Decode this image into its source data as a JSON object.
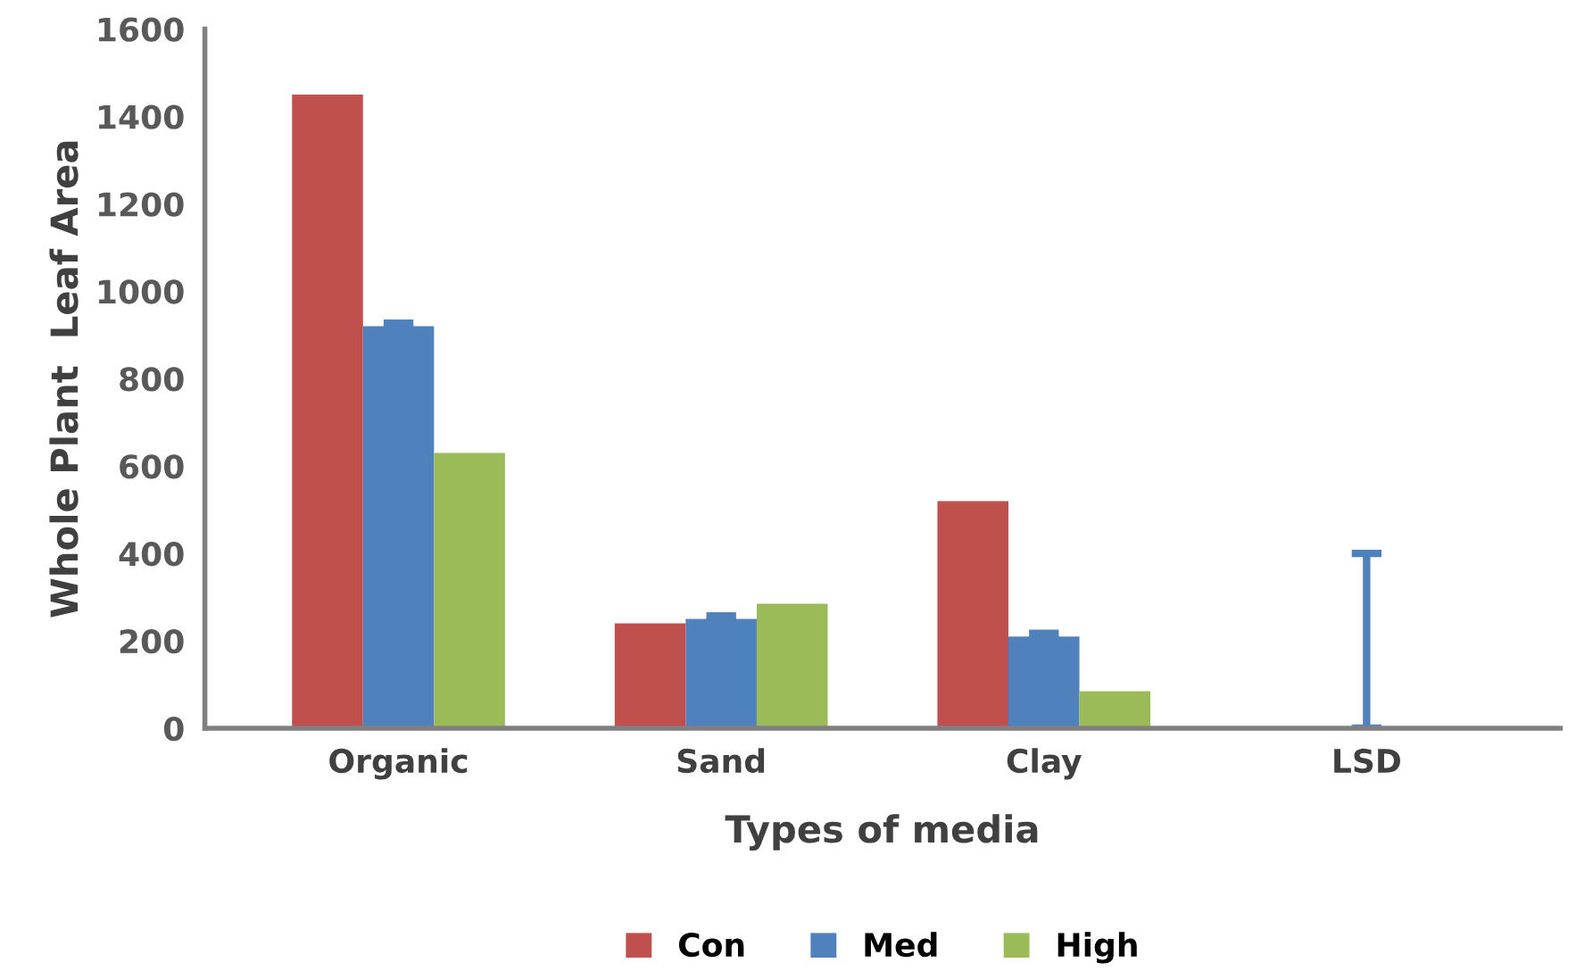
{
  "chart_data": {
    "type": "bar",
    "xlabel": "Types of media",
    "ylabel": "Whole Plant  Leaf Area",
    "categories": [
      "Organic",
      "Sand",
      "Clay",
      "LSD"
    ],
    "series": [
      {
        "name": "Con",
        "color": "#c0504d",
        "values": [
          1450,
          240,
          520,
          null
        ]
      },
      {
        "name": "Med",
        "color": "#4f81bd",
        "values": [
          920,
          250,
          210,
          0
        ],
        "errors": [
          7,
          7,
          7,
          [
            0,
            400
          ]
        ]
      },
      {
        "name": "High",
        "color": "#9bbb59",
        "values": [
          630,
          285,
          85,
          null
        ]
      }
    ],
    "ylim": [
      0,
      1600
    ],
    "yticks": [
      0,
      200,
      400,
      600,
      800,
      1000,
      1200,
      1400,
      1600
    ],
    "grid": false,
    "legend": "bottom"
  }
}
